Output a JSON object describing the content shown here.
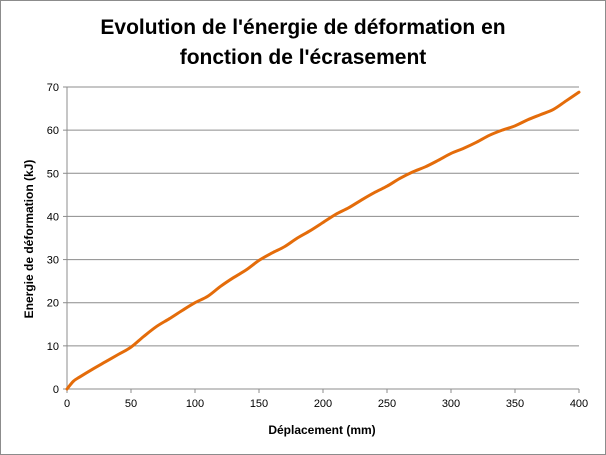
{
  "chart_data": {
    "type": "line",
    "title_line1": "Evolution de l'énergie de déformation en",
    "title_line2": "fonction de l'écrasement",
    "xlabel": "Déplacement (mm)",
    "ylabel": "Energie de déformation (kJ)",
    "xlim": [
      0,
      400
    ],
    "ylim": [
      0,
      70
    ],
    "x_ticks": [
      "0",
      "50",
      "100",
      "150",
      "200",
      "250",
      "300",
      "350",
      "400"
    ],
    "y_ticks": [
      "0",
      "10",
      "20",
      "30",
      "40",
      "50",
      "60",
      "70"
    ],
    "grid": "horizontal",
    "legend": "none",
    "series": [
      {
        "color": "#e46c0a",
        "x": [
          0,
          5,
          10,
          20,
          30,
          40,
          50,
          60,
          70,
          80,
          90,
          100,
          110,
          120,
          130,
          140,
          150,
          160,
          170,
          180,
          190,
          200,
          210,
          220,
          230,
          240,
          250,
          260,
          270,
          280,
          290,
          300,
          310,
          320,
          330,
          340,
          350,
          360,
          370,
          380,
          390,
          400
        ],
        "y": [
          0,
          1.8,
          2.8,
          4.6,
          6.3,
          8.0,
          9.7,
          12.2,
          14.5,
          16.3,
          18.2,
          20.0,
          21.5,
          23.8,
          25.8,
          27.6,
          29.8,
          31.5,
          33.0,
          35.0,
          36.7,
          38.6,
          40.5,
          42.0,
          43.8,
          45.5,
          47.0,
          48.8,
          50.3,
          51.5,
          53.0,
          54.6,
          55.8,
          57.2,
          58.8,
          60.0,
          61.0,
          62.4,
          63.6,
          64.8,
          66.8,
          68.8
        ]
      }
    ]
  }
}
